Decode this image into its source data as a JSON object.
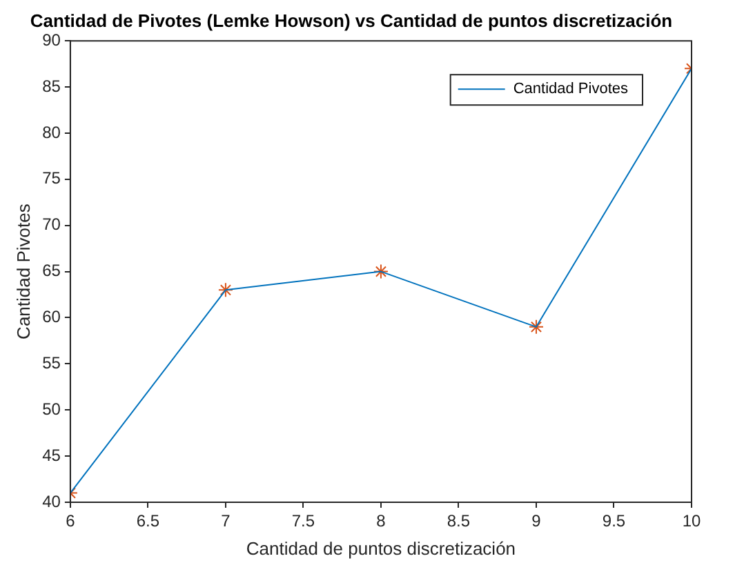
{
  "chart_data": {
    "type": "line",
    "title": "Cantidad de Pivotes (Lemke Howson) vs Cantidad de puntos discretización",
    "xlabel": "Cantidad de puntos discretización",
    "ylabel": "Cantidad Pivotes",
    "x": [
      6,
      7,
      8,
      9,
      10
    ],
    "series": [
      {
        "name": "Cantidad Pivotes",
        "type": "line",
        "color": "#0072bd",
        "values": [
          41,
          63,
          65,
          59,
          87
        ],
        "marker": "none"
      },
      {
        "type": "scatter",
        "color": "#d95319",
        "values": [
          41,
          63,
          65,
          59,
          87
        ],
        "marker": "cross"
      }
    ],
    "xlim": [
      6,
      10
    ],
    "xticks": [
      6,
      {
        "value": 6.5,
        "label": "6.5"
      },
      7,
      {
        "value": 7.5,
        "label": "7.5"
      },
      8,
      {
        "value": 8.5,
        "label": "8.5"
      },
      9,
      {
        "value": 9.5,
        "label": "9.5"
      },
      10
    ],
    "ylim": [
      40,
      90
    ],
    "yticks": [
      40,
      45,
      50,
      55,
      60,
      65,
      70,
      75,
      80,
      85,
      90
    ],
    "grid": false,
    "legend": "top right"
  }
}
